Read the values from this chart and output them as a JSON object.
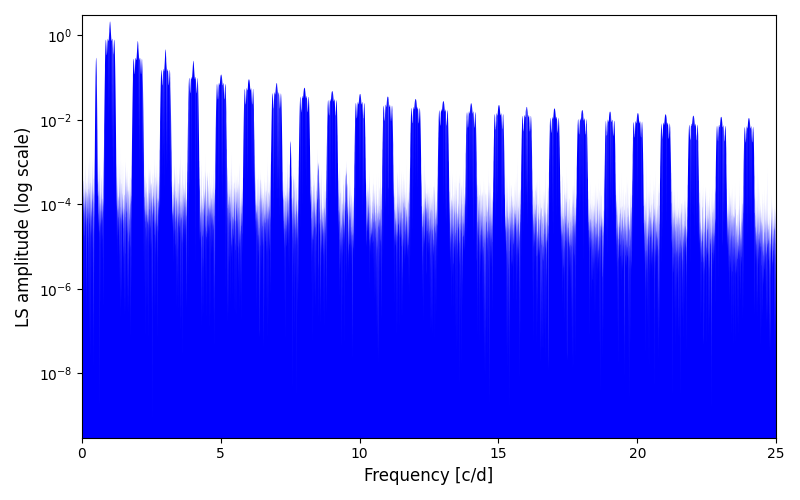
{
  "color": "#0000ff",
  "xlabel": "Frequency [c/d]",
  "ylabel": "LS amplitude (log scale)",
  "xlim": [
    0,
    25
  ],
  "ylim": [
    3e-10,
    3.0
  ],
  "yscale": "log",
  "figsize": [
    8.0,
    5.0
  ],
  "dpi": 100,
  "seed": 1234,
  "n_points": 15000,
  "freq_max": 25.0,
  "background_color": "#ffffff",
  "linewidth": 0.3
}
